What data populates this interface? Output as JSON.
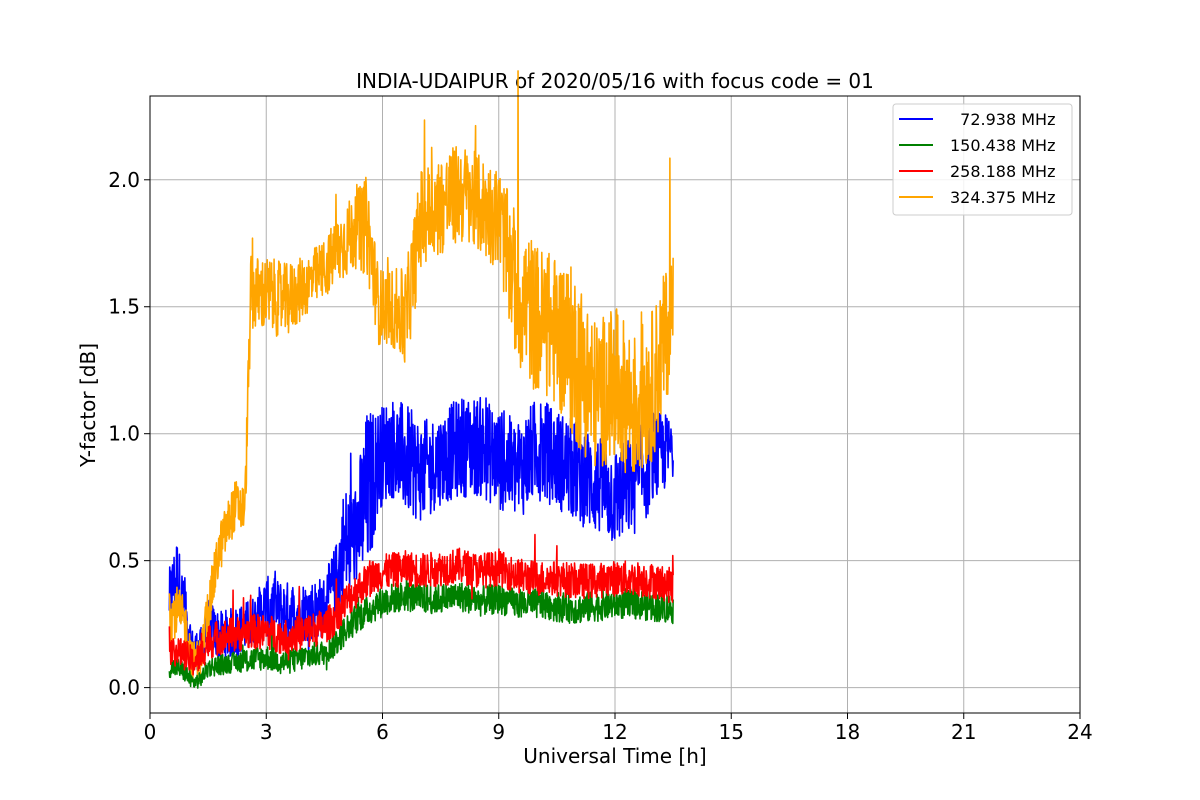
{
  "chart_data": {
    "type": "line",
    "title": "INDIA-UDAIPUR of 2020/05/16 with focus code = 01",
    "xlabel": "Universal Time [h]",
    "ylabel": "Y-factor [dB]",
    "xlim": [
      0,
      24
    ],
    "ylim": [
      -0.1,
      2.33
    ],
    "xticks": [
      0,
      3,
      6,
      9,
      12,
      15,
      18,
      21,
      24
    ],
    "xtick_labels": [
      "0",
      "3",
      "6",
      "9",
      "12",
      "15",
      "18",
      "21",
      "24"
    ],
    "yticks": [
      0.0,
      0.5,
      1.0,
      1.5,
      2.0
    ],
    "ytick_labels": [
      "0.0",
      "0.5",
      "1.0",
      "1.5",
      "2.0"
    ],
    "grid": true,
    "legend_position": "top-right",
    "series": [
      {
        "name": "  72.938 MHz",
        "color": "#0000ff",
        "x": [
          0.5,
          0.7,
          0.9,
          1.1,
          1.3,
          1.5,
          1.8,
          2.2,
          2.6,
          3.0,
          3.5,
          4.0,
          4.5,
          4.8,
          5.0,
          5.3,
          5.6,
          5.9,
          6.2,
          6.6,
          7.0,
          7.5,
          8.0,
          8.5,
          9.0,
          9.5,
          10.0,
          10.5,
          11.0,
          11.5,
          12.0,
          12.5,
          13.0,
          13.5
        ],
        "y": [
          0.35,
          0.45,
          0.3,
          0.15,
          0.15,
          0.25,
          0.2,
          0.22,
          0.25,
          0.32,
          0.3,
          0.3,
          0.32,
          0.42,
          0.55,
          0.6,
          0.75,
          0.9,
          0.95,
          0.9,
          0.85,
          0.9,
          0.95,
          0.95,
          0.9,
          0.85,
          0.95,
          0.9,
          0.85,
          0.8,
          0.75,
          0.8,
          0.9,
          0.95
        ],
        "band": [
          0.12,
          0.15,
          0.1,
          0.08,
          0.08,
          0.1,
          0.1,
          0.1,
          0.1,
          0.12,
          0.12,
          0.12,
          0.12,
          0.15,
          0.25,
          0.2,
          0.35,
          0.2,
          0.2,
          0.22,
          0.2,
          0.18,
          0.2,
          0.2,
          0.2,
          0.2,
          0.2,
          0.2,
          0.2,
          0.2,
          0.2,
          0.2,
          0.2,
          0.12
        ]
      },
      {
        "name": "150.438 MHz",
        "color": "#008000",
        "x": [
          0.5,
          0.7,
          0.9,
          1.1,
          1.3,
          1.5,
          1.8,
          2.2,
          2.6,
          3.0,
          3.5,
          4.0,
          4.5,
          4.8,
          5.0,
          5.3,
          5.6,
          5.9,
          6.2,
          6.6,
          7.0,
          7.5,
          8.0,
          8.5,
          9.0,
          9.5,
          10.0,
          10.5,
          11.0,
          11.5,
          12.0,
          12.5,
          13.0,
          13.5
        ],
        "y": [
          0.08,
          0.08,
          0.06,
          0.02,
          0.03,
          0.08,
          0.09,
          0.1,
          0.11,
          0.12,
          0.1,
          0.12,
          0.14,
          0.18,
          0.22,
          0.27,
          0.3,
          0.33,
          0.35,
          0.36,
          0.35,
          0.35,
          0.36,
          0.34,
          0.35,
          0.33,
          0.33,
          0.32,
          0.31,
          0.32,
          0.33,
          0.33,
          0.32,
          0.31
        ],
        "band": [
          0.04,
          0.04,
          0.04,
          0.03,
          0.03,
          0.04,
          0.04,
          0.04,
          0.05,
          0.05,
          0.05,
          0.05,
          0.05,
          0.06,
          0.06,
          0.06,
          0.06,
          0.06,
          0.06,
          0.06,
          0.06,
          0.06,
          0.06,
          0.06,
          0.06,
          0.06,
          0.06,
          0.06,
          0.06,
          0.06,
          0.06,
          0.06,
          0.06,
          0.06
        ]
      },
      {
        "name": "258.188 MHz",
        "color": "#ff0000",
        "x": [
          0.5,
          0.7,
          0.9,
          1.1,
          1.3,
          1.5,
          1.8,
          2.2,
          2.6,
          3.0,
          3.5,
          4.0,
          4.5,
          4.8,
          5.0,
          5.3,
          5.6,
          5.9,
          6.2,
          6.6,
          7.0,
          7.5,
          8.0,
          8.5,
          9.0,
          9.5,
          10.0,
          10.5,
          11.0,
          11.5,
          12.0,
          12.5,
          13.0,
          13.5
        ],
        "y": [
          0.15,
          0.14,
          0.13,
          0.1,
          0.12,
          0.18,
          0.2,
          0.21,
          0.22,
          0.22,
          0.2,
          0.22,
          0.24,
          0.28,
          0.33,
          0.38,
          0.42,
          0.45,
          0.46,
          0.47,
          0.46,
          0.47,
          0.48,
          0.46,
          0.47,
          0.44,
          0.43,
          0.43,
          0.42,
          0.42,
          0.43,
          0.43,
          0.42,
          0.4
        ],
        "band": [
          0.06,
          0.06,
          0.06,
          0.06,
          0.06,
          0.07,
          0.07,
          0.07,
          0.07,
          0.07,
          0.07,
          0.07,
          0.07,
          0.07,
          0.07,
          0.07,
          0.07,
          0.07,
          0.07,
          0.07,
          0.07,
          0.07,
          0.07,
          0.07,
          0.07,
          0.07,
          0.07,
          0.07,
          0.07,
          0.07,
          0.07,
          0.07,
          0.07,
          0.07
        ]
      },
      {
        "name": "324.375 MHz",
        "color": "#ffa500",
        "x": [
          0.5,
          0.7,
          0.9,
          1.1,
          1.3,
          1.5,
          1.8,
          2.2,
          2.45,
          2.6,
          3.0,
          3.5,
          4.0,
          4.5,
          5.0,
          5.3,
          5.6,
          5.9,
          6.2,
          6.6,
          7.0,
          7.5,
          8.0,
          8.5,
          9.0,
          9.5,
          10.0,
          10.5,
          11.0,
          11.5,
          12.0,
          12.5,
          13.0,
          13.5
        ],
        "y": [
          0.28,
          0.3,
          0.25,
          0.1,
          0.12,
          0.3,
          0.55,
          0.72,
          0.7,
          1.55,
          1.55,
          1.52,
          1.58,
          1.65,
          1.75,
          1.8,
          1.82,
          1.5,
          1.5,
          1.45,
          1.85,
          1.9,
          1.95,
          1.9,
          1.85,
          1.55,
          1.45,
          1.4,
          1.3,
          1.15,
          1.2,
          1.1,
          1.2,
          1.5
        ],
        "band": [
          0.1,
          0.1,
          0.1,
          0.08,
          0.08,
          0.1,
          0.1,
          0.1,
          0.1,
          0.15,
          0.15,
          0.15,
          0.12,
          0.12,
          0.15,
          0.15,
          0.2,
          0.15,
          0.15,
          0.2,
          0.2,
          0.2,
          0.2,
          0.2,
          0.2,
          0.3,
          0.3,
          0.3,
          0.35,
          0.3,
          0.3,
          0.3,
          0.3,
          0.25
        ]
      }
    ]
  }
}
